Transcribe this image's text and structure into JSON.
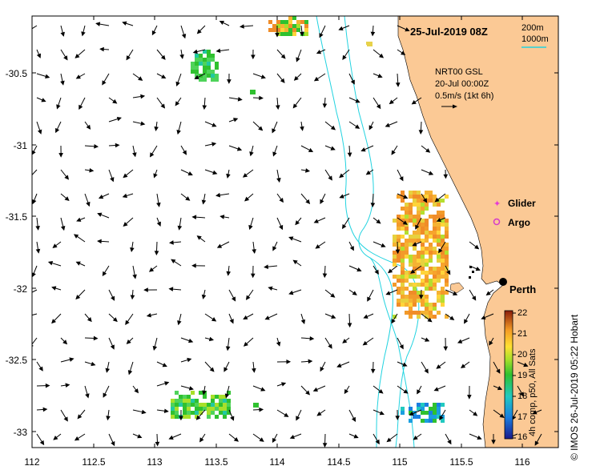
{
  "title": "25-Jul-2019 08Z",
  "bathy_legend": {
    "line1": "200m",
    "line2": "1000m"
  },
  "current_info": {
    "line1": "NRT00 GSL",
    "line2": "20-Jul 00:00Z",
    "line3": "0.5m/s (1kt 6h)"
  },
  "legend": {
    "glider": "Glider",
    "argo": "Argo"
  },
  "city": "Perth",
  "colorbar": {
    "label": "4h comp, p50, All Sats",
    "ticks": [
      "22",
      "21",
      "20",
      "19",
      "18",
      "17",
      "16"
    ]
  },
  "credit": "© IMOS 26-Jul-2019 05:22 Hobart",
  "axes": {
    "x_ticks": [
      "112",
      "112.5",
      "113",
      "113.5",
      "114",
      "114.5",
      "115",
      "115.5",
      "116"
    ],
    "y_ticks": [
      "-30.5",
      "-31",
      "-31.5",
      "-32",
      "-32.5",
      "-33"
    ]
  },
  "colors": {
    "land": "#fbc995",
    "bathymetry": "#22d3e0",
    "glider": "#e53ad6",
    "argo": "#d53acb"
  }
}
